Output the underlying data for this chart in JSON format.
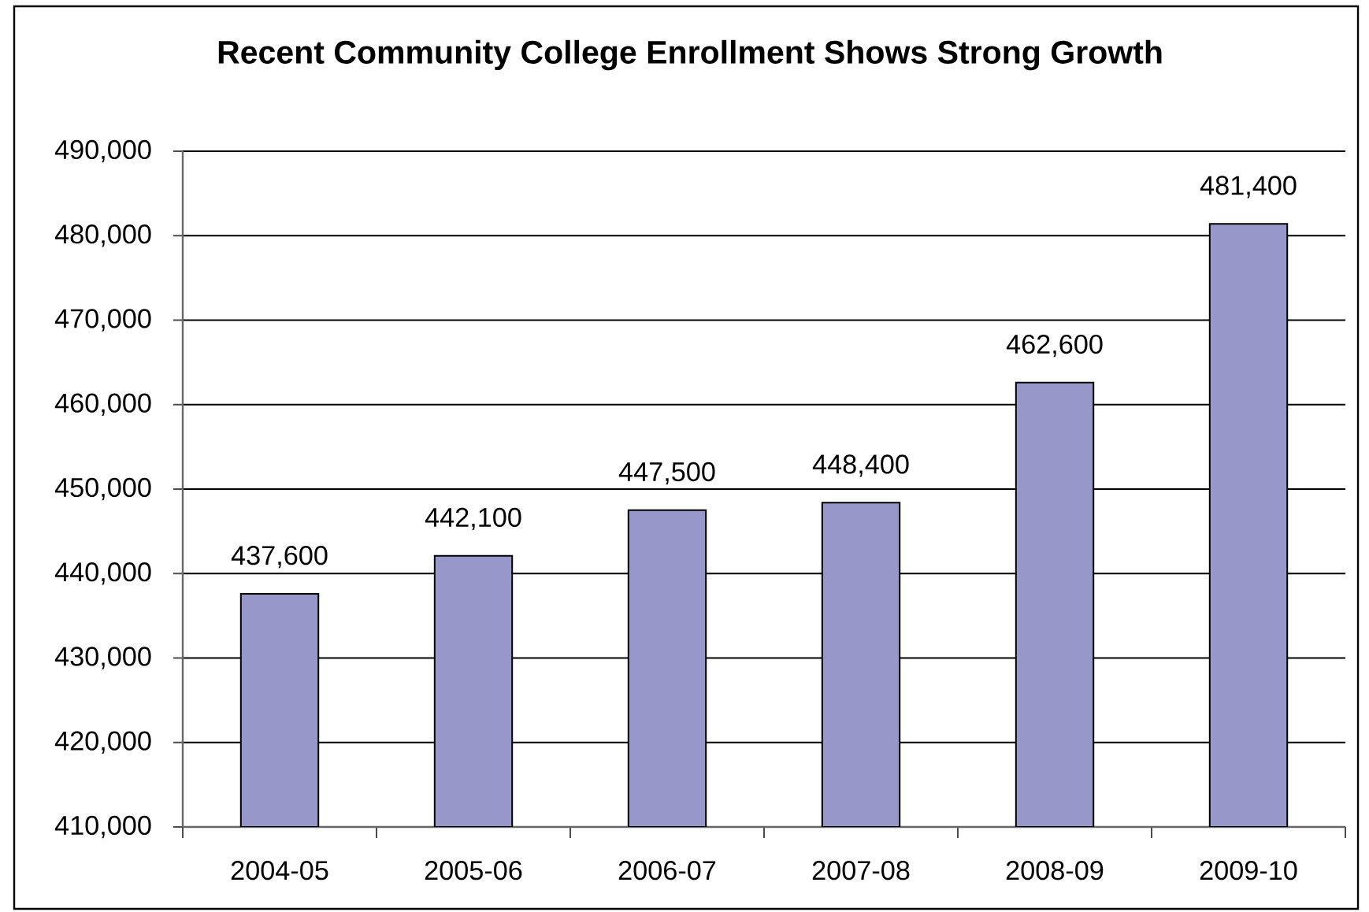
{
  "chart_data": {
    "type": "bar",
    "title": "Recent Community College Enrollment Shows Strong Growth",
    "categories": [
      "2004-05",
      "2005-06",
      "2006-07",
      "2007-08",
      "2008-09",
      "2009-10"
    ],
    "values": [
      437600,
      442100,
      447500,
      448400,
      462600,
      481400
    ],
    "value_labels": [
      "437,600",
      "442,100",
      "447,500",
      "448,400",
      "462,600",
      "481,400"
    ],
    "color": "#9797c9",
    "ylim": [
      410000,
      490000
    ],
    "yticks": [
      {
        "value": 410000,
        "label": "410,000"
      },
      {
        "value": 420000,
        "label": "420,000"
      },
      {
        "value": 430000,
        "label": "430,000"
      },
      {
        "value": 440000,
        "label": "440,000"
      },
      {
        "value": 450000,
        "label": "450,000"
      },
      {
        "value": 460000,
        "label": "460,000"
      },
      {
        "value": 470000,
        "label": "470,000"
      },
      {
        "value": 480000,
        "label": "480,000"
      },
      {
        "value": 490000,
        "label": "490,000"
      }
    ],
    "grid": "y"
  }
}
